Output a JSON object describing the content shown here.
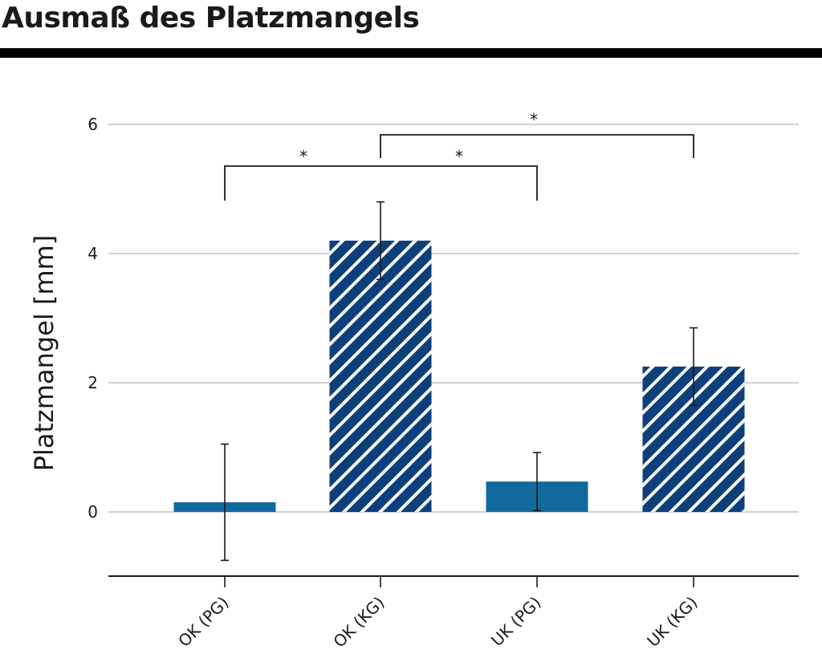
{
  "title": "Ausmaß des Platzmangels",
  "colors": {
    "solid": "#11699e",
    "hatched": "#0e3f7a"
  },
  "chart_data": {
    "type": "bar",
    "title": "",
    "xlabel": "",
    "ylabel": "Platzmangel [mm]",
    "ylim": [
      -1,
      6
    ],
    "yticks": [
      "0",
      "2",
      "4",
      "6"
    ],
    "categories": [
      "OK (PG)",
      "OK (KG)",
      "UK (PG)",
      "UK (KG)"
    ],
    "values": [
      0.15,
      4.2,
      0.47,
      2.25
    ],
    "errors": [
      0.9,
      0.6,
      0.45,
      0.6
    ],
    "fill": [
      "solid",
      "hatched",
      "solid",
      "hatched"
    ],
    "grid": true,
    "significance": [
      {
        "from": "OK (PG)",
        "to": "UK (PG)",
        "label": "*"
      },
      {
        "from": "OK (KG)",
        "to": "UK (KG)",
        "label": "*"
      }
    ]
  }
}
